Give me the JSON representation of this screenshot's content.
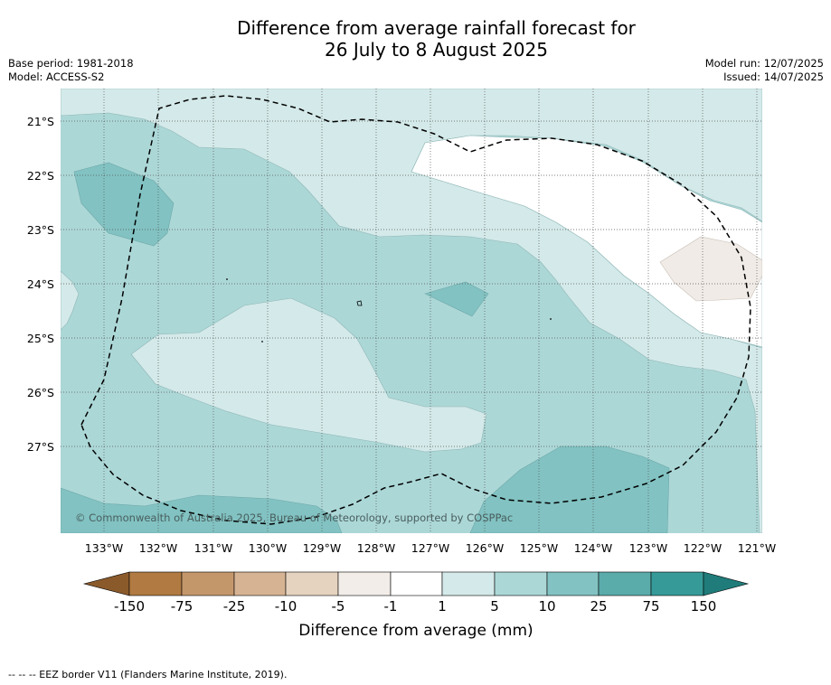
{
  "title": {
    "line1": "Difference from average rainfall forecast for",
    "line2": "26 July to 8 August 2025"
  },
  "meta_left": {
    "base_period": "Base period: 1981-2018",
    "model": "Model: ACCESS-S2"
  },
  "meta_right": {
    "model_run": "Model run: 12/07/2025",
    "issued": "Issued: 14/07/2025"
  },
  "map": {
    "copyright": "© Commonwealth of Australia 2025, Bureau of Meteorology, supported by COSPPac",
    "lat_labels": [
      "21°S",
      "22°S",
      "23°S",
      "24°S",
      "25°S",
      "26°S",
      "27°S"
    ],
    "lon_labels": [
      "133°W",
      "132°W",
      "131°W",
      "130°W",
      "129°W",
      "128°W",
      "127°W",
      "126°W",
      "125°W",
      "124°W",
      "123°W",
      "122°W",
      "121°W"
    ]
  },
  "legend": {
    "tick_labels": [
      "-150",
      "-75",
      "-25",
      "-10",
      "-5",
      "-1",
      "1",
      "5",
      "10",
      "25",
      "75",
      "150"
    ],
    "colors": [
      "#8b5a2b",
      "#b07a42",
      "#c4976b",
      "#d6b493",
      "#e6d3bf",
      "#f2ede8",
      "#ffffff",
      "#d4e9e9",
      "#acd7d7",
      "#82c2c2",
      "#5aacab",
      "#369b98",
      "#1f7c7a"
    ],
    "label": "Difference from average (mm)"
  },
  "footnote": "-- -- -- EEZ border V11 (Flanders Marine Institute, 2019)."
}
